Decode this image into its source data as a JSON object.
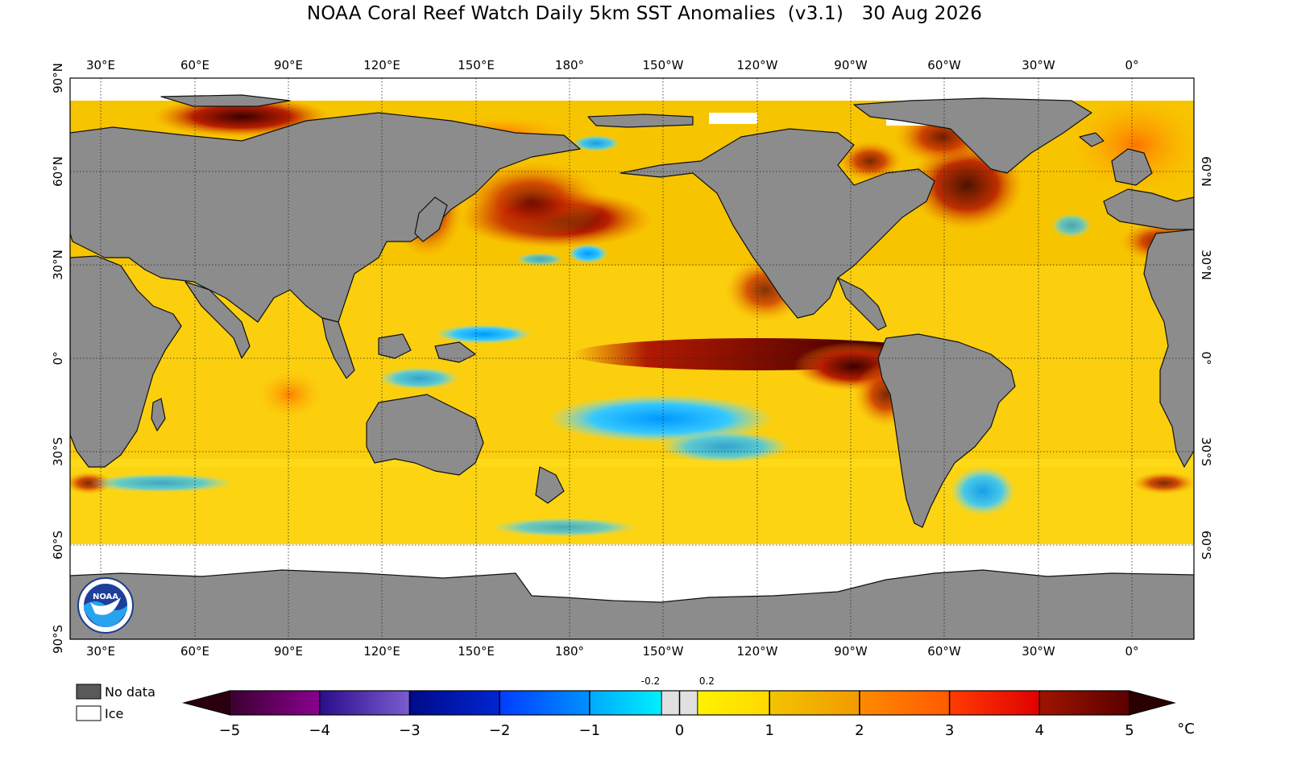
{
  "title": "NOAA Coral Reef Watch Daily 5km SST Anomalies  (v3.1)   30 Aug 2026",
  "map": {
    "lon_labels": [
      "30°E",
      "60°E",
      "90°E",
      "120°E",
      "150°E",
      "180°",
      "150°W",
      "120°W",
      "90°W",
      "60°W",
      "30°W",
      "0°"
    ],
    "lat_labels": [
      "90°N",
      "60°N",
      "30°N",
      "0°",
      "30°S",
      "60°S",
      "90°S"
    ],
    "colors": {
      "land": "#8c8c8c",
      "ice": "#ffffff",
      "coast": "#111111"
    }
  },
  "legend": {
    "no_data": "No data",
    "ice": "Ice",
    "no_data_color": "#595959",
    "ice_color": "#ffffff"
  },
  "colorbar": {
    "unit": "°C",
    "ticks": [
      "−5",
      "−4",
      "−3",
      "−2",
      "−1",
      "0",
      "1",
      "2",
      "3",
      "4",
      "5"
    ],
    "small_ticks": [
      "-0.2",
      "0.2"
    ],
    "under_color": "#2a0010",
    "over_color": "#2a0000",
    "segments": [
      {
        "from": -5,
        "to": -4,
        "colors": [
          "#3b0030",
          "#8a0090"
        ]
      },
      {
        "from": -4,
        "to": -3,
        "colors": [
          "#2b0d8c",
          "#7a5cd0"
        ]
      },
      {
        "from": -3,
        "to": -2,
        "colors": [
          "#000a8a",
          "#0026d0"
        ]
      },
      {
        "from": -2,
        "to": -1,
        "colors": [
          "#003dff",
          "#0090ff"
        ]
      },
      {
        "from": -1,
        "to": -0.2,
        "colors": [
          "#00a8ff",
          "#00f0ff"
        ]
      },
      {
        "from": -0.2,
        "to": 0.2,
        "colors": [
          "#e0e0e0",
          "#e0e0e0"
        ]
      },
      {
        "from": 0.2,
        "to": 1,
        "colors": [
          "#fff200",
          "#ffd800"
        ]
      },
      {
        "from": 1,
        "to": 2,
        "colors": [
          "#f2c400",
          "#f29a00"
        ]
      },
      {
        "from": 2,
        "to": 3,
        "colors": [
          "#ff8a00",
          "#ff5a00"
        ]
      },
      {
        "from": 3,
        "to": 4,
        "colors": [
          "#ff3c00",
          "#e00000"
        ]
      },
      {
        "from": 4,
        "to": 5,
        "colors": [
          "#a01400",
          "#5a0000"
        ]
      }
    ]
  }
}
